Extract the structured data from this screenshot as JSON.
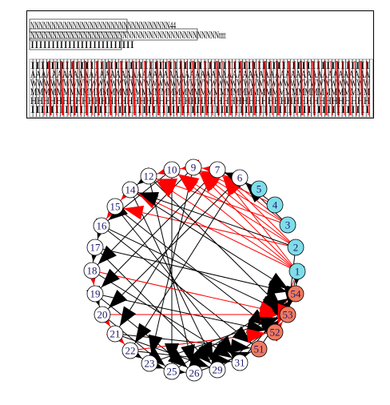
{
  "figure": {
    "legend": {
      "top_lines": [
        "NNNNNNNNNNNNNNNNNNNNNNNNNNNNNNNNN44",
        "NNNNNNNNNNNNNNNNNNNNNNNNNNNNNNNNNNNNNNNNNNNtttt",
        "IIIIIIIIIIIIIIIIIIIIIIIII"
      ],
      "bottom_lines": [
        "IIIIIIIIIIIIIIIIIIIIIIIIIIIIIIIIIIIIIIIIIIIIIIIIIIIIIIIIIIIIIIIIIIIII",
        "AAAAAAAAAAAAAAAAAAAAAAAAAAAAAAAAAAAAAAAAAAAAAAAAAAAAAAAAAAAAAAAA",
        "WWWWWWWWWWWWWWWWWWWWWWWWWWWWWWWWWWWWWWWWWWWWWWWWWWW",
        "MMMMMMMMMMMMMMMMMMMMMMMMMMMMMMMMMMMMMMMMMMMMMMMMMMMM",
        "HHHHHHHHHHHHHHHHHHHHHHHHHHHHHHHHHHHHHHHHHHHHHHHHHHHHH",
        "IIIIIIIIIIIIIIIIIIIIIIIIIIIIIIIIIIIIIIIIIIIIIIIIIIIIIIIIIIIIIIIIIIIIII"
      ]
    },
    "colors": {
      "cyan_node": "#7fdde9",
      "salmon_node": "#f07a5f",
      "white_node": "#ffffff",
      "edge_black": "#000000",
      "edge_red": "#ff0000",
      "label": "#1a1a6e"
    },
    "nodes": [
      {
        "label": "1",
        "group": "cyan"
      },
      {
        "label": "2",
        "group": "cyan"
      },
      {
        "label": "3",
        "group": "cyan"
      },
      {
        "label": "4",
        "group": "cyan"
      },
      {
        "label": "5",
        "group": "cyan"
      },
      {
        "label": "6",
        "group": "white"
      },
      {
        "label": "7",
        "group": "white"
      },
      {
        "label": "9",
        "group": "white"
      },
      {
        "label": "10",
        "group": "white"
      },
      {
        "label": "12",
        "group": "white"
      },
      {
        "label": "14",
        "group": "white"
      },
      {
        "label": "15",
        "group": "white"
      },
      {
        "label": "16",
        "group": "white"
      },
      {
        "label": "17",
        "group": "white"
      },
      {
        "label": "18",
        "group": "white"
      },
      {
        "label": "19",
        "group": "white"
      },
      {
        "label": "20",
        "group": "white"
      },
      {
        "label": "21",
        "group": "white"
      },
      {
        "label": "22",
        "group": "white"
      },
      {
        "label": "23",
        "group": "white"
      },
      {
        "label": "25",
        "group": "white"
      },
      {
        "label": "26",
        "group": "white"
      },
      {
        "label": "29",
        "group": "white"
      },
      {
        "label": "31",
        "group": "white"
      },
      {
        "label": "51",
        "group": "salmon"
      },
      {
        "label": "52",
        "group": "salmon"
      },
      {
        "label": "53",
        "group": "salmon"
      },
      {
        "label": "54",
        "group": "salmon"
      }
    ],
    "edges": [
      [
        "1",
        "9",
        "red"
      ],
      [
        "1",
        "7",
        "red"
      ],
      [
        "1",
        "10",
        "red"
      ],
      [
        "1",
        "12",
        "red"
      ],
      [
        "1",
        "14",
        "red"
      ],
      [
        "2",
        "10",
        "red"
      ],
      [
        "2",
        "7",
        "red"
      ],
      [
        "2",
        "9",
        "red"
      ],
      [
        "2",
        "14",
        "black"
      ],
      [
        "2",
        "15",
        "red"
      ],
      [
        "3",
        "7",
        "red"
      ],
      [
        "3",
        "12",
        "red"
      ],
      [
        "3",
        "9",
        "red"
      ],
      [
        "3",
        "6",
        "black"
      ],
      [
        "4",
        "6",
        "black"
      ],
      [
        "4",
        "9",
        "red"
      ],
      [
        "5",
        "7",
        "black"
      ],
      [
        "6",
        "20",
        "black"
      ],
      [
        "6",
        "22",
        "black"
      ],
      [
        "7",
        "19",
        "black"
      ],
      [
        "7",
        "21",
        "black"
      ],
      [
        "9",
        "23",
        "black"
      ],
      [
        "9",
        "18",
        "black"
      ],
      [
        "10",
        "25",
        "black"
      ],
      [
        "10",
        "16",
        "black"
      ],
      [
        "12",
        "26",
        "black"
      ],
      [
        "12",
        "53",
        "black"
      ],
      [
        "14",
        "29",
        "black"
      ],
      [
        "14",
        "54",
        "black"
      ],
      [
        "15",
        "31",
        "black"
      ],
      [
        "15",
        "52",
        "black"
      ],
      [
        "16",
        "51",
        "black"
      ],
      [
        "16",
        "53",
        "black"
      ],
      [
        "17",
        "54",
        "black"
      ],
      [
        "17",
        "29",
        "black"
      ],
      [
        "18",
        "53",
        "red"
      ],
      [
        "18",
        "31",
        "black"
      ],
      [
        "19",
        "52",
        "black"
      ],
      [
        "19",
        "26",
        "black"
      ],
      [
        "20",
        "53",
        "red"
      ],
      [
        "20",
        "25",
        "black"
      ],
      [
        "21",
        "51",
        "black"
      ],
      [
        "21",
        "29",
        "black"
      ],
      [
        "22",
        "52",
        "red"
      ],
      [
        "22",
        "31",
        "black"
      ],
      [
        "23",
        "53",
        "black"
      ],
      [
        "25",
        "54",
        "black"
      ],
      [
        "26",
        "51",
        "black"
      ],
      [
        "29",
        "53",
        "black"
      ],
      [
        "31",
        "54",
        "black"
      ],
      [
        "51",
        "54",
        "black"
      ],
      [
        "52",
        "53",
        "red"
      ],
      [
        "1",
        "53",
        "black"
      ],
      [
        "1",
        "54",
        "black"
      ],
      [
        "2",
        "53",
        "black"
      ],
      [
        "1",
        "52",
        "red"
      ],
      [
        "10",
        "12",
        "red"
      ],
      [
        "9",
        "10",
        "red"
      ],
      [
        "7",
        "9",
        "red"
      ],
      [
        "14",
        "15",
        "red"
      ],
      [
        "15",
        "16",
        "red"
      ],
      [
        "18",
        "19",
        "red"
      ],
      [
        "20",
        "21",
        "red"
      ],
      [
        "21",
        "22",
        "red"
      ],
      [
        "22",
        "23",
        "black"
      ],
      [
        "23",
        "25",
        "black"
      ],
      [
        "17",
        "18",
        "black"
      ],
      [
        "16",
        "17",
        "black"
      ],
      [
        "12",
        "14",
        "black"
      ],
      [
        "19",
        "20",
        "black"
      ],
      [
        "6",
        "7",
        "black"
      ],
      [
        "25",
        "26",
        "black"
      ]
    ]
  }
}
